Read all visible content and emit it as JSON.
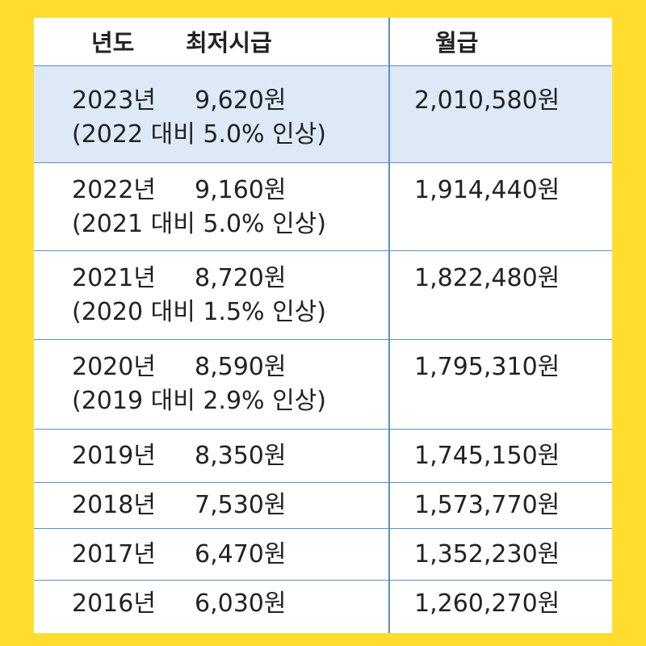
{
  "header": {
    "year": "년도",
    "hourly": "최저시급",
    "monthly": "월급"
  },
  "rows": [
    {
      "year": "2023년",
      "wage": "9,620원",
      "note": "(2022 대비 5.0% 인상)",
      "monthly": "2,010,580원"
    },
    {
      "year": "2022년",
      "wage": "9,160원",
      "note": "(2021 대비 5.0% 인상)",
      "monthly": "1,914,440원"
    },
    {
      "year": "2021년",
      "wage": "8,720원",
      "note": "(2020 대비 1.5% 인상)",
      "monthly": "1,822,480원"
    },
    {
      "year": "2020년",
      "wage": "8,590원",
      "note": "(2019 대비 2.9% 인상)",
      "monthly": "1,795,310원"
    },
    {
      "year": "2019년",
      "wage": "8,350원",
      "monthly": "1,745,150원"
    },
    {
      "year": "2018년",
      "wage": "7,530원",
      "monthly": "1,573,770원"
    },
    {
      "year": "2017년",
      "wage": "6,470원",
      "monthly": "1,352,230원"
    },
    {
      "year": "2016년",
      "wage": "6,030원",
      "monthly": "1,260,270원"
    }
  ],
  "colors": {
    "background": "#fedd2f",
    "highlight_row": "#dde9f6",
    "grid_line": "#5b8fc4"
  }
}
